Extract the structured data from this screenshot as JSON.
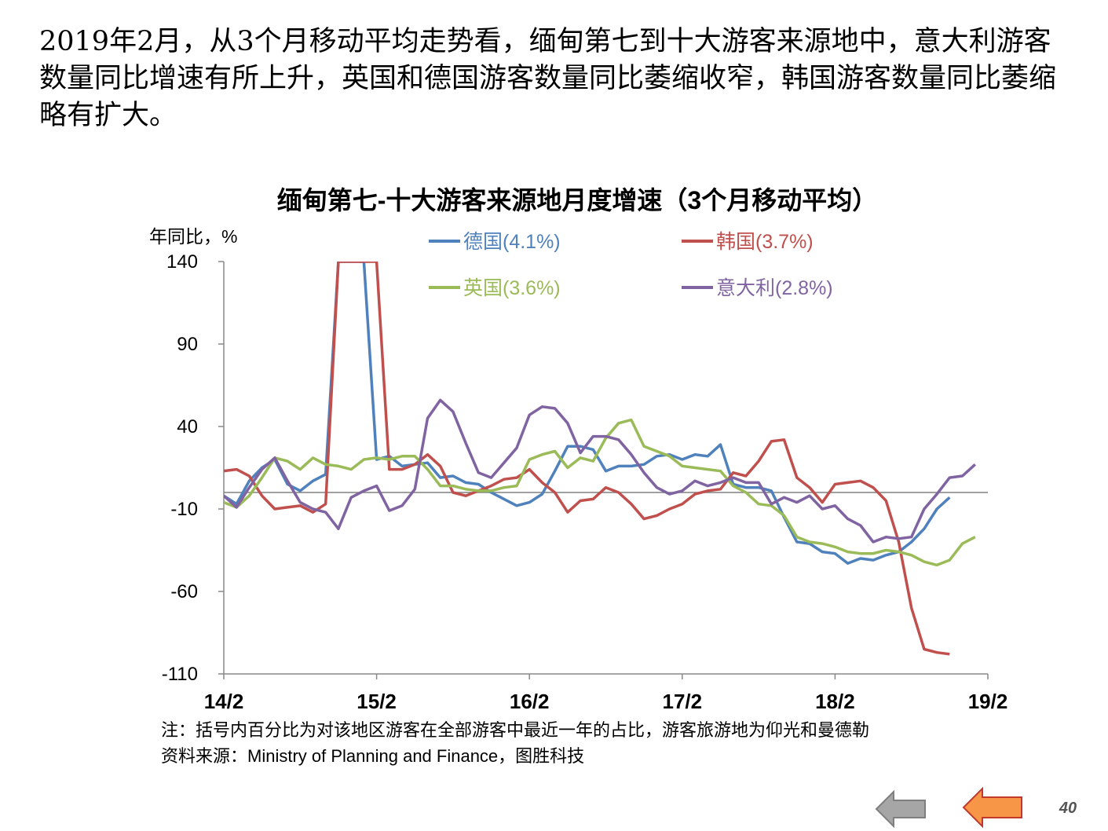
{
  "summary_text": "2019年2月，从3个月移动平均走势看，缅甸第七到十大游客来源地中，意大利游客数量同比增速有所上升，英国和德国游客数量同比萎缩收窄，韩国游客数量同比萎缩略有扩大。",
  "page_number": "40",
  "nav": {
    "prev_icon": "arrow-left-gray-icon",
    "next_icon": "arrow-left-orange-icon"
  },
  "chart_data": {
    "type": "line",
    "title": "缅甸第七-十大游客来源地月度增速（3个月移动平均）",
    "ylabel": "年同比，%",
    "xlabel": "",
    "ylim": [
      -110,
      140
    ],
    "yticks": [
      140,
      90,
      40,
      -10,
      -60,
      -110
    ],
    "x_tick_labels": [
      "14/2",
      "15/2",
      "16/2",
      "17/2",
      "18/2",
      "19/2"
    ],
    "x_tick_indices": [
      0,
      12,
      24,
      36,
      48,
      60
    ],
    "reference_line": 0,
    "note": "注：括号内百分比为对该地区游客在全部游客中最近一年的占比，游客旅游地为仰光和曼德勒",
    "source": "资料来源：Ministry of Planning and Finance，图胜科技",
    "series": [
      {
        "name": "德国(4.1%)",
        "color": "#4F81BD",
        "values": [
          -2,
          -7,
          7,
          15,
          20,
          5,
          1,
          7,
          11,
          140,
          140,
          140,
          20,
          22,
          16,
          17,
          18,
          9,
          10,
          6,
          5,
          0,
          -4,
          -8,
          -6,
          -1,
          13,
          28,
          28,
          26,
          13,
          16,
          16,
          17,
          22,
          23,
          20,
          23,
          22,
          29,
          5,
          3,
          3,
          1,
          -15,
          -30,
          -31,
          -36,
          -37,
          -43,
          -40,
          -41,
          -38,
          -36,
          -30,
          -22,
          -10,
          -3
        ]
      },
      {
        "name": "韩国(3.7%)",
        "color": "#C0504D",
        "values": [
          13,
          14,
          10,
          -2,
          -10,
          -9,
          -8,
          -12,
          -7,
          140,
          140,
          140,
          140,
          14,
          14,
          17,
          23,
          16,
          0,
          -2,
          1,
          4,
          8,
          9,
          14,
          6,
          0,
          -12,
          -5,
          -4,
          3,
          0,
          -7,
          -16,
          -14,
          -10,
          -7,
          -1,
          1,
          2,
          12,
          10,
          19,
          31,
          32,
          9,
          3,
          -6,
          5,
          6,
          7,
          3,
          -5,
          -30,
          -70,
          -95,
          -97,
          -98
        ]
      },
      {
        "name": "英国(3.6%)",
        "color": "#9BBB59",
        "values": [
          -6,
          -9,
          -2,
          9,
          21,
          19,
          14,
          21,
          17,
          16,
          14,
          20,
          21,
          20,
          22,
          22,
          14,
          4,
          4,
          2,
          1,
          1,
          3,
          4,
          20,
          23,
          25,
          15,
          21,
          19,
          33,
          42,
          44,
          28,
          25,
          22,
          16,
          15,
          14,
          13,
          4,
          0,
          -7,
          -8,
          -14,
          -27,
          -30,
          -31,
          -33,
          -36,
          -37,
          -37,
          -35,
          -36,
          -38,
          -42,
          -44,
          -41,
          -31,
          -27
        ]
      },
      {
        "name": "意大利(2.8%)",
        "color": "#8064A2",
        "values": [
          -2,
          -9,
          3,
          14,
          21,
          7,
          -6,
          -10,
          -12,
          -22,
          -3,
          1,
          4,
          -11,
          -8,
          2,
          45,
          56,
          49,
          30,
          12,
          9,
          18,
          27,
          47,
          52,
          51,
          42,
          24,
          34,
          34,
          32,
          23,
          12,
          3,
          -1,
          1,
          7,
          4,
          6,
          9,
          6,
          6,
          -7,
          -3,
          -6,
          -2,
          -10,
          -8,
          -16,
          -20,
          -30,
          -27,
          -28,
          -27,
          -10,
          -1,
          9,
          10,
          17
        ]
      }
    ]
  }
}
